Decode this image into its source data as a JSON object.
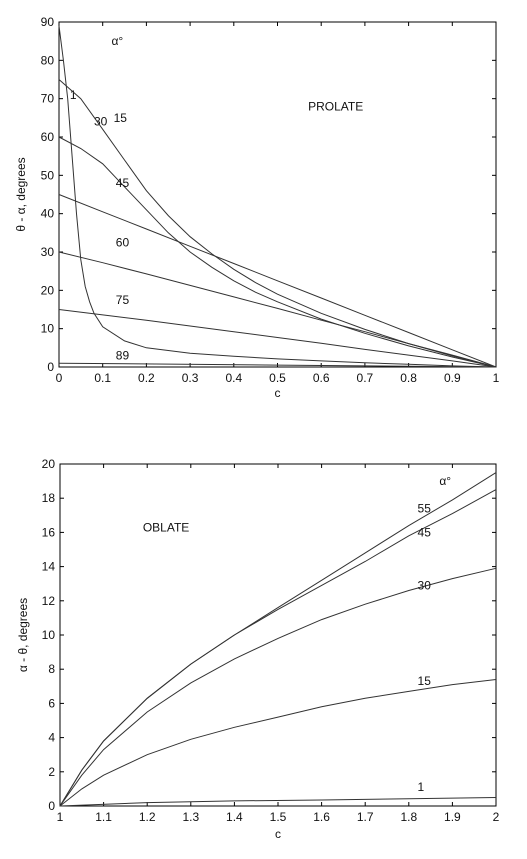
{
  "chart_data": [
    {
      "type": "line",
      "title": "",
      "xlabel": "c",
      "ylabel": "θ - α,  degrees",
      "xlim": [
        0,
        1
      ],
      "ylim": [
        0,
        90
      ],
      "xticks": [
        0,
        0.1,
        0.2,
        0.3,
        0.4,
        0.5,
        0.6,
        0.7,
        0.8,
        0.9,
        1
      ],
      "xtick_labels": [
        "0",
        "0.1",
        "0.2",
        "0.3",
        "0.4",
        "0.5",
        "0.6",
        "0.7",
        "0.8",
        "0.9",
        "1"
      ],
      "yticks": [
        0,
        10,
        20,
        30,
        40,
        50,
        60,
        70,
        80,
        90
      ],
      "ytick_labels": [
        "0",
        "10",
        "20",
        "30",
        "40",
        "50",
        "60",
        "70",
        "80",
        "90"
      ],
      "grid": false,
      "annotations": [
        {
          "text": "PROLATE",
          "x": 0.57,
          "y": 68
        },
        {
          "text": "α°",
          "x": 0.12,
          "y": 85
        }
      ],
      "series": [
        {
          "name": "1",
          "label_at": [
            0.025,
            71
          ],
          "points": [
            [
              0,
              89
            ],
            [
              0.01,
              80
            ],
            [
              0.02,
              70
            ],
            [
              0.03,
              55
            ],
            [
              0.04,
              40
            ],
            [
              0.05,
              28
            ],
            [
              0.06,
              21
            ],
            [
              0.07,
              17
            ],
            [
              0.08,
              14
            ],
            [
              0.1,
              10.5
            ],
            [
              0.15,
              6.8
            ],
            [
              0.2,
              5
            ],
            [
              0.3,
              3.6
            ],
            [
              0.4,
              2.8
            ],
            [
              0.5,
              2.1
            ],
            [
              0.6,
              1.6
            ],
            [
              0.7,
              1.1
            ],
            [
              0.8,
              0.7
            ],
            [
              0.9,
              0.3
            ],
            [
              1,
              0
            ]
          ]
        },
        {
          "name": "30",
          "label_at": [
            0.08,
            64
          ],
          "points": [
            [
              0,
              60
            ],
            [
              0.05,
              57
            ],
            [
              0.1,
              53
            ],
            [
              0.15,
              47
            ],
            [
              0.2,
              41
            ],
            [
              0.25,
              35
            ],
            [
              0.3,
              30
            ],
            [
              0.35,
              26
            ],
            [
              0.4,
              22.5
            ],
            [
              0.45,
              19.5
            ],
            [
              0.5,
              17
            ],
            [
              0.6,
              12.5
            ],
            [
              0.7,
              8.8
            ],
            [
              0.8,
              5.5
            ],
            [
              0.9,
              2.6
            ],
            [
              1,
              0
            ]
          ]
        },
        {
          "name": "15",
          "label_at": [
            0.125,
            65
          ],
          "points": [
            [
              0,
              75
            ],
            [
              0.05,
              70
            ],
            [
              0.1,
              62
            ],
            [
              0.15,
              54
            ],
            [
              0.2,
              46
            ],
            [
              0.25,
              39.5
            ],
            [
              0.3,
              34
            ],
            [
              0.35,
              29.5
            ],
            [
              0.4,
              25.5
            ],
            [
              0.45,
              22
            ],
            [
              0.5,
              19
            ],
            [
              0.6,
              14
            ],
            [
              0.7,
              9.8
            ],
            [
              0.8,
              6.1
            ],
            [
              0.9,
              2.9
            ],
            [
              1,
              0
            ]
          ]
        },
        {
          "name": "45",
          "label_at": [
            0.13,
            48
          ],
          "points": [
            [
              0,
              45
            ],
            [
              0.1,
              40.5
            ],
            [
              0.2,
              36
            ],
            [
              0.3,
              31.5
            ],
            [
              0.4,
              27
            ],
            [
              0.5,
              22.5
            ],
            [
              0.6,
              18
            ],
            [
              0.7,
              13.5
            ],
            [
              0.8,
              9
            ],
            [
              0.9,
              4.5
            ],
            [
              1,
              0
            ]
          ]
        },
        {
          "name": "60",
          "label_at": [
            0.13,
            32.5
          ],
          "points": [
            [
              0,
              30
            ],
            [
              0.1,
              27.2
            ],
            [
              0.2,
              24.3
            ],
            [
              0.3,
              21.3
            ],
            [
              0.4,
              18.3
            ],
            [
              0.5,
              15.3
            ],
            [
              0.6,
              12.2
            ],
            [
              0.7,
              9.2
            ],
            [
              0.8,
              6.1
            ],
            [
              0.9,
              3.1
            ],
            [
              1,
              0
            ]
          ]
        },
        {
          "name": "75",
          "label_at": [
            0.13,
            17.5
          ],
          "points": [
            [
              0,
              15
            ],
            [
              0.1,
              13.6
            ],
            [
              0.2,
              12.2
            ],
            [
              0.3,
              10.7
            ],
            [
              0.4,
              9.2
            ],
            [
              0.5,
              7.7
            ],
            [
              0.6,
              6.2
            ],
            [
              0.7,
              4.6
            ],
            [
              0.8,
              3.1
            ],
            [
              0.9,
              1.6
            ],
            [
              1,
              0
            ]
          ]
        },
        {
          "name": "89",
          "label_at": [
            0.13,
            3
          ],
          "points": [
            [
              0,
              1
            ],
            [
              0.5,
              0.5
            ],
            [
              1,
              0
            ]
          ]
        }
      ]
    },
    {
      "type": "line",
      "title": "",
      "xlabel": "c",
      "ylabel": "α - θ,  degrees",
      "xlim": [
        1,
        2
      ],
      "ylim": [
        0,
        20
      ],
      "xticks": [
        1,
        1.1,
        1.2,
        1.3,
        1.4,
        1.5,
        1.6,
        1.7,
        1.8,
        1.9,
        2
      ],
      "xtick_labels": [
        "1",
        "1.1",
        "1.2",
        "1.3",
        "1.4",
        "1.5",
        "1.6",
        "1.7",
        "1.8",
        "1.9",
        "2"
      ],
      "yticks": [
        0,
        2,
        4,
        6,
        8,
        10,
        12,
        14,
        16,
        18,
        20
      ],
      "ytick_labels": [
        "0",
        "2",
        "4",
        "6",
        "8",
        "10",
        "12",
        "14",
        "16",
        "18",
        "20"
      ],
      "grid": false,
      "annotations": [
        {
          "text": "OBLATE",
          "x": 1.19,
          "y": 16.3
        },
        {
          "text": "α°",
          "x": 1.87,
          "y": 19
        }
      ],
      "series": [
        {
          "name": "55",
          "label_at": [
            1.82,
            17.4
          ],
          "points": [
            [
              1,
              0
            ],
            [
              1.05,
              2.1
            ],
            [
              1.1,
              3.8
            ],
            [
              1.2,
              6.3
            ],
            [
              1.3,
              8.3
            ],
            [
              1.4,
              10
            ],
            [
              1.5,
              11.6
            ],
            [
              1.6,
              13.2
            ],
            [
              1.7,
              14.8
            ],
            [
              1.8,
              16.4
            ],
            [
              1.9,
              17.9
            ],
            [
              2,
              19.5
            ]
          ]
        },
        {
          "name": "45",
          "label_at": [
            1.82,
            16
          ],
          "points": [
            [
              1,
              0
            ],
            [
              1.05,
              2.1
            ],
            [
              1.1,
              3.8
            ],
            [
              1.2,
              6.3
            ],
            [
              1.3,
              8.3
            ],
            [
              1.4,
              10
            ],
            [
              1.5,
              11.5
            ],
            [
              1.6,
              12.9
            ],
            [
              1.7,
              14.3
            ],
            [
              1.8,
              15.8
            ],
            [
              1.9,
              17.1
            ],
            [
              2,
              18.5
            ]
          ]
        },
        {
          "name": "30",
          "label_at": [
            1.82,
            12.9
          ],
          "points": [
            [
              1,
              0
            ],
            [
              1.05,
              1.8
            ],
            [
              1.1,
              3.3
            ],
            [
              1.2,
              5.5
            ],
            [
              1.3,
              7.2
            ],
            [
              1.4,
              8.6
            ],
            [
              1.5,
              9.8
            ],
            [
              1.6,
              10.9
            ],
            [
              1.7,
              11.8
            ],
            [
              1.8,
              12.6
            ],
            [
              1.9,
              13.3
            ],
            [
              2,
              13.9
            ]
          ]
        },
        {
          "name": "15",
          "label_at": [
            1.82,
            7.3
          ],
          "points": [
            [
              1,
              0
            ],
            [
              1.05,
              1
            ],
            [
              1.1,
              1.8
            ],
            [
              1.2,
              3
            ],
            [
              1.3,
              3.9
            ],
            [
              1.4,
              4.6
            ],
            [
              1.5,
              5.2
            ],
            [
              1.6,
              5.8
            ],
            [
              1.7,
              6.3
            ],
            [
              1.8,
              6.7
            ],
            [
              1.9,
              7.1
            ],
            [
              2,
              7.4
            ]
          ]
        },
        {
          "name": "1",
          "label_at": [
            1.82,
            1.1
          ],
          "points": [
            [
              1,
              0
            ],
            [
              1.2,
              0.2
            ],
            [
              1.4,
              0.3
            ],
            [
              1.6,
              0.35
            ],
            [
              1.8,
              0.42
            ],
            [
              2,
              0.5
            ]
          ]
        }
      ]
    }
  ]
}
